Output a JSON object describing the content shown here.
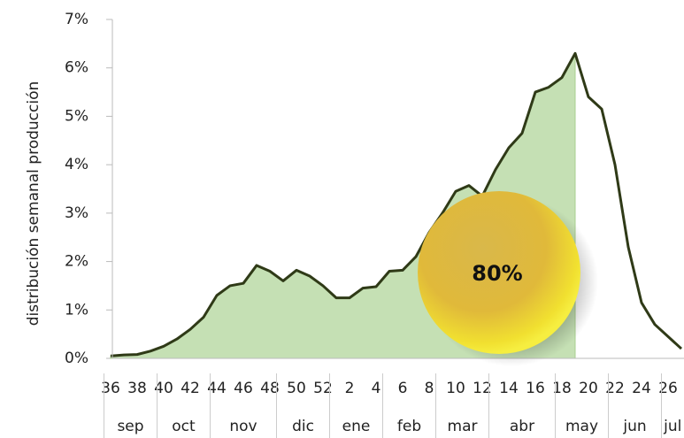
{
  "chart_data": {
    "type": "area_line",
    "y_axis_label": "distribución semanal producción",
    "categories": [
      "36",
      null,
      "38",
      null,
      "40",
      null,
      "42",
      null,
      "44",
      null,
      "46",
      null,
      "48",
      null,
      "50",
      null,
      "52",
      null,
      "2",
      null,
      "4",
      null,
      "6",
      null,
      "8",
      null,
      "10",
      null,
      "12",
      null,
      "14",
      null,
      "16",
      null,
      "18",
      null,
      "20",
      null,
      "22",
      null,
      "24",
      null,
      "26",
      null
    ],
    "values": [
      0.05,
      0.07,
      0.08,
      0.15,
      0.25,
      0.4,
      0.6,
      0.85,
      1.3,
      1.5,
      1.55,
      1.92,
      1.8,
      1.6,
      1.82,
      1.7,
      1.5,
      1.25,
      1.25,
      1.45,
      1.48,
      1.8,
      1.82,
      2.1,
      2.6,
      3.0,
      3.45,
      3.57,
      3.35,
      3.9,
      4.35,
      4.65,
      5.5,
      5.6,
      5.8,
      6.3,
      5.4,
      5.15,
      4.0,
      2.3,
      1.15,
      0.7,
      0.45,
      0.2
    ],
    "color": "#2f3a17",
    "fill_color": "#c5e0b4",
    "shade_to_index": 35,
    "months": [
      {
        "label": "sep",
        "weeks": 4
      },
      {
        "label": "oct",
        "weeks": 4
      },
      {
        "label": "nov",
        "weeks": 5
      },
      {
        "label": "dic",
        "weeks": 4
      },
      {
        "label": "ene",
        "weeks": 4
      },
      {
        "label": "feb",
        "weeks": 4
      },
      {
        "label": "mar",
        "weeks": 4
      },
      {
        "label": "abr",
        "weeks": 5
      },
      {
        "label": "may",
        "weeks": 4
      },
      {
        "label": "jun",
        "weeks": 4
      },
      {
        "label": "jul",
        "weeks": 2
      }
    ],
    "annotation": "80%",
    "ylim": [
      0,
      7
    ],
    "yticks": [
      {
        "value": 0,
        "label": "0%"
      },
      {
        "value": 1,
        "label": "1%"
      },
      {
        "value": 2,
        "label": "2%"
      },
      {
        "value": 3,
        "label": "3%"
      },
      {
        "value": 4,
        "label": "4%"
      },
      {
        "value": 5,
        "label": "5%"
      },
      {
        "value": 6,
        "label": "6%"
      },
      {
        "value": 7,
        "label": "7%"
      }
    ]
  }
}
